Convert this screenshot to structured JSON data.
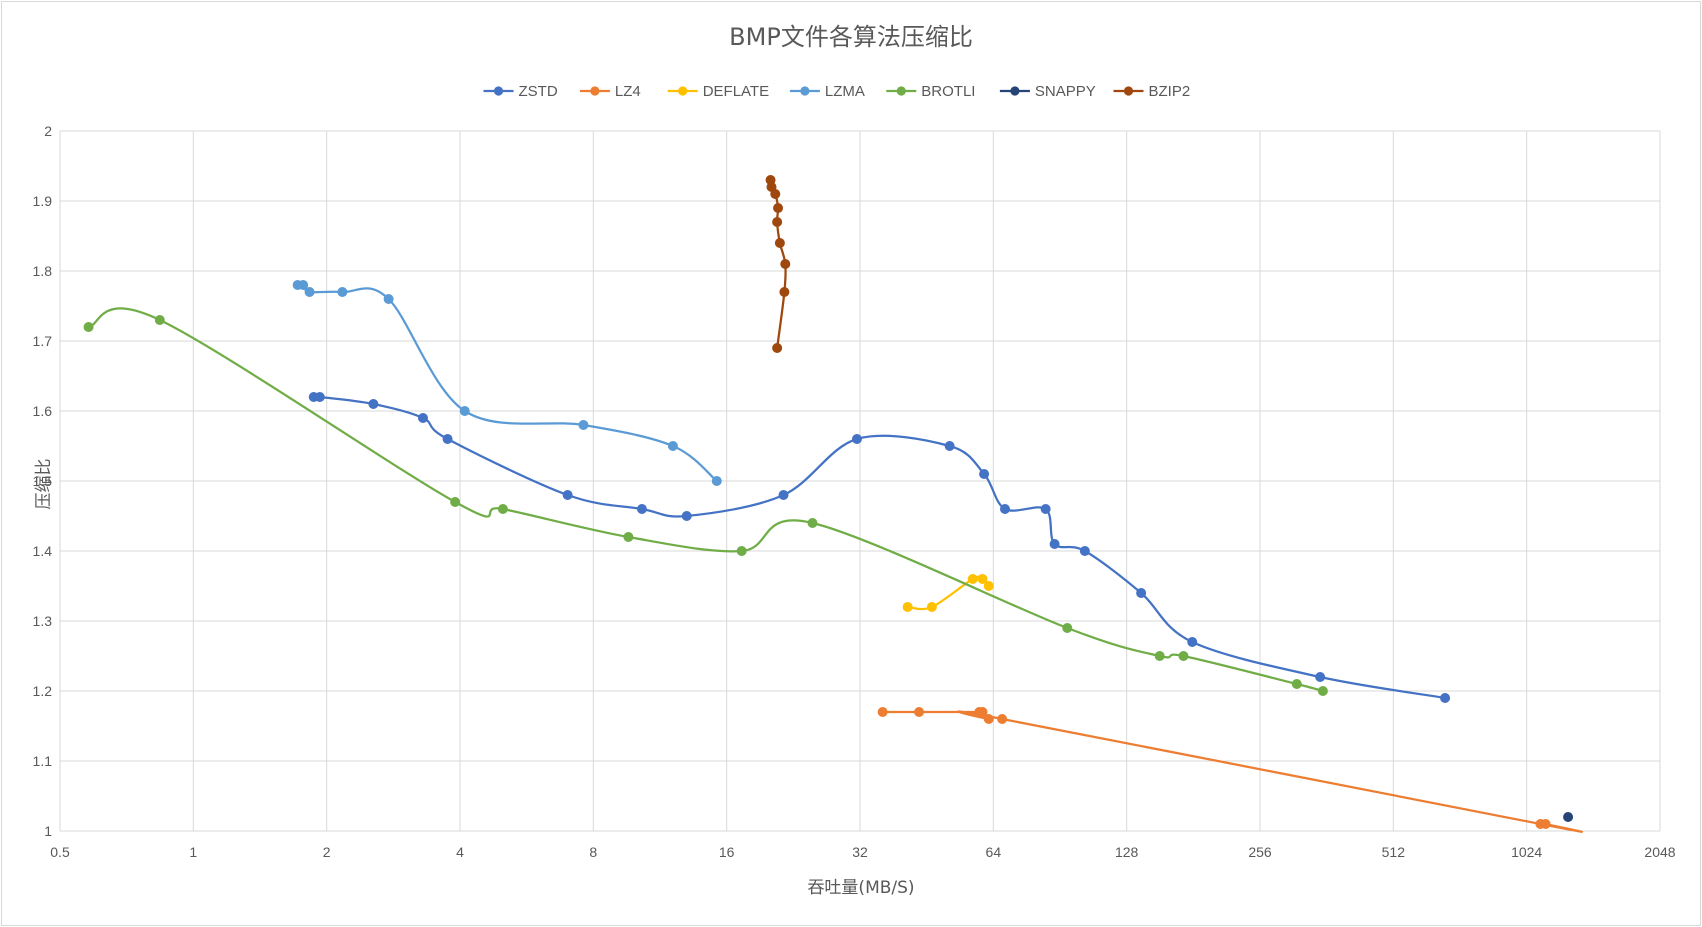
{
  "chart_data": {
    "type": "line",
    "title": "BMP文件各算法压缩比",
    "xlabel": "吞吐量(MB/S)",
    "ylabel": "压缩比",
    "xscale": "log2",
    "xlim": [
      0.5,
      2048
    ],
    "ylim": [
      1,
      2
    ],
    "xticks": [
      0.5,
      1,
      2,
      4,
      8,
      16,
      32,
      64,
      128,
      256,
      512,
      1024,
      2048
    ],
    "xtick_labels": [
      "0.5",
      "1",
      "2",
      "4",
      "8",
      "16",
      "32",
      "64",
      "128",
      "256",
      "512",
      "1024",
      "2048"
    ],
    "yticks": [
      1,
      1.1,
      1.2,
      1.3,
      1.4,
      1.5,
      1.6,
      1.7,
      1.8,
      1.9,
      2
    ],
    "ytick_labels": [
      "1",
      "1.1",
      "1.2",
      "1.3",
      "1.4",
      "1.5",
      "1.6",
      "1.7",
      "1.8",
      "1.9",
      "2"
    ],
    "grid": true,
    "legend_position": "top",
    "series": [
      {
        "name": "ZSTD",
        "color": "#4472c4",
        "points": [
          [
            1.87,
            1.62
          ],
          [
            1.93,
            1.62
          ],
          [
            2.55,
            1.61
          ],
          [
            3.3,
            1.59
          ],
          [
            3.75,
            1.56
          ],
          [
            7.0,
            1.48
          ],
          [
            10.3,
            1.46
          ],
          [
            13.0,
            1.45
          ],
          [
            21.5,
            1.48
          ],
          [
            31.5,
            1.56
          ],
          [
            51.0,
            1.55
          ],
          [
            61.0,
            1.51
          ],
          [
            68.0,
            1.46
          ],
          [
            84.0,
            1.46
          ],
          [
            88.0,
            1.41
          ],
          [
            103.0,
            1.4
          ],
          [
            138.0,
            1.34
          ],
          [
            180.0,
            1.27
          ],
          [
            350.0,
            1.22
          ],
          [
            670.0,
            1.19
          ]
        ]
      },
      {
        "name": "LZ4",
        "color": "#ed7d31",
        "points": [
          [
            36.0,
            1.17
          ],
          [
            43.5,
            1.17
          ],
          [
            59.5,
            1.17
          ],
          [
            60.5,
            1.17
          ],
          [
            62.5,
            1.16
          ],
          [
            67.0,
            1.16
          ],
          [
            1100.0,
            1.01
          ],
          [
            1130.0,
            1.01
          ]
        ]
      },
      {
        "name": "DEFLATE",
        "color": "#ffc000",
        "points": [
          [
            41.0,
            1.32
          ],
          [
            46.5,
            1.32
          ],
          [
            57.5,
            1.36
          ],
          [
            60.5,
            1.36
          ],
          [
            62.5,
            1.35
          ]
        ]
      },
      {
        "name": "LZMA",
        "color": "#5b9bd5",
        "points": [
          [
            1.72,
            1.78
          ],
          [
            1.77,
            1.78
          ],
          [
            1.83,
            1.77
          ],
          [
            2.17,
            1.77
          ],
          [
            2.76,
            1.76
          ],
          [
            4.1,
            1.6
          ],
          [
            7.6,
            1.58
          ],
          [
            12.1,
            1.55
          ],
          [
            15.2,
            1.5
          ]
        ]
      },
      {
        "name": "BROTLI",
        "color": "#70ad47",
        "points": [
          [
            0.58,
            1.72
          ],
          [
            0.84,
            1.73
          ],
          [
            3.9,
            1.47
          ],
          [
            5.0,
            1.46
          ],
          [
            9.6,
            1.42
          ],
          [
            17.3,
            1.4
          ],
          [
            25.0,
            1.44
          ],
          [
            94.0,
            1.29
          ],
          [
            152.0,
            1.25
          ],
          [
            172.0,
            1.25
          ],
          [
            310.0,
            1.21
          ],
          [
            355.0,
            1.2
          ]
        ]
      },
      {
        "name": "SNAPPY",
        "color": "#264478",
        "points": [
          [
            1270.0,
            1.02
          ]
        ]
      },
      {
        "name": "BZIP2",
        "color": "#9e480e",
        "points": [
          [
            20.1,
            1.93
          ],
          [
            20.2,
            1.92
          ],
          [
            20.6,
            1.91
          ],
          [
            20.9,
            1.89
          ],
          [
            20.8,
            1.87
          ],
          [
            21.1,
            1.84
          ],
          [
            21.7,
            1.81
          ],
          [
            21.6,
            1.77
          ],
          [
            20.8,
            1.69
          ]
        ]
      }
    ]
  }
}
